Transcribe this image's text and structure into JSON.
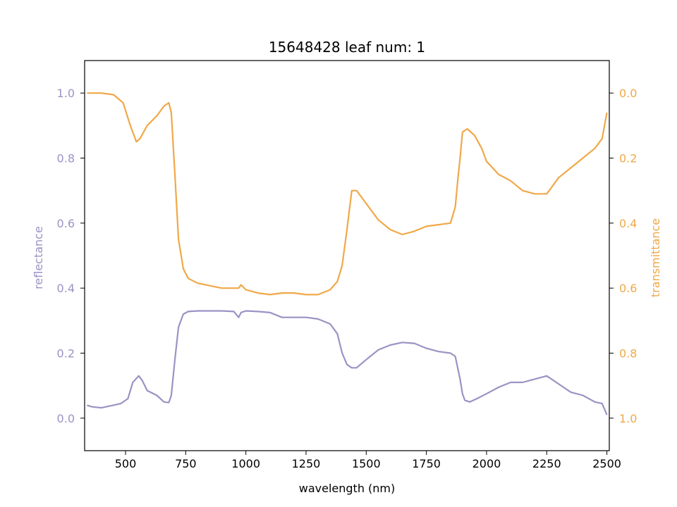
{
  "chart_data": {
    "type": "line",
    "title": "15648428 leaf num: 1",
    "xlabel": "wavelength (nm)",
    "ylabel_left": "reflectance",
    "ylabel_right": "transmittance",
    "xlim": [
      330,
      2510
    ],
    "ylim_left": [
      -0.1,
      1.1
    ],
    "ylim_right": [
      1.1,
      -0.1
    ],
    "right_axis_inverted": true,
    "x_ticks": [
      500,
      750,
      1000,
      1250,
      1500,
      1750,
      2000,
      2250,
      2500
    ],
    "y_ticks_left": [
      0.0,
      0.2,
      0.4,
      0.6,
      0.8,
      1.0
    ],
    "y_ticks_right": [
      0.0,
      0.2,
      0.4,
      0.6,
      0.8,
      1.0
    ],
    "grid": false,
    "colors": {
      "reflectance": "#9a93c4",
      "transmittance": "#f0a848",
      "axis": "#000000"
    },
    "series": [
      {
        "name": "reflectance",
        "axis": "left",
        "color": "#9a93c4",
        "x": [
          340,
          360,
          400,
          450,
          480,
          510,
          530,
          555,
          570,
          590,
          630,
          660,
          680,
          690,
          705,
          720,
          740,
          760,
          800,
          900,
          950,
          970,
          980,
          1000,
          1050,
          1100,
          1150,
          1200,
          1250,
          1300,
          1350,
          1380,
          1400,
          1420,
          1440,
          1460,
          1500,
          1550,
          1600,
          1650,
          1700,
          1750,
          1800,
          1850,
          1870,
          1890,
          1900,
          1910,
          1930,
          1960,
          2000,
          2050,
          2100,
          2150,
          2200,
          2250,
          2300,
          2350,
          2400,
          2450,
          2480,
          2500
        ],
        "y": [
          0.04,
          0.035,
          0.032,
          0.04,
          0.045,
          0.06,
          0.11,
          0.13,
          0.115,
          0.085,
          0.07,
          0.05,
          0.048,
          0.07,
          0.18,
          0.28,
          0.32,
          0.328,
          0.33,
          0.33,
          0.328,
          0.31,
          0.325,
          0.33,
          0.328,
          0.325,
          0.31,
          0.31,
          0.31,
          0.305,
          0.29,
          0.26,
          0.2,
          0.165,
          0.155,
          0.155,
          0.18,
          0.21,
          0.225,
          0.233,
          0.23,
          0.215,
          0.205,
          0.2,
          0.19,
          0.12,
          0.075,
          0.055,
          0.05,
          0.06,
          0.075,
          0.095,
          0.11,
          0.11,
          0.12,
          0.13,
          0.105,
          0.08,
          0.07,
          0.05,
          0.045,
          0.01
        ]
      },
      {
        "name": "transmittance",
        "axis": "right",
        "color": "#f0a848",
        "x": [
          340,
          360,
          400,
          450,
          490,
          520,
          545,
          560,
          590,
          630,
          660,
          680,
          690,
          705,
          720,
          740,
          760,
          800,
          900,
          950,
          970,
          980,
          1000,
          1050,
          1100,
          1150,
          1200,
          1250,
          1300,
          1350,
          1380,
          1400,
          1420,
          1440,
          1460,
          1500,
          1550,
          1600,
          1650,
          1700,
          1750,
          1800,
          1850,
          1870,
          1880,
          1890,
          1900,
          1920,
          1950,
          1980,
          2000,
          2050,
          2100,
          2150,
          2200,
          2250,
          2300,
          2350,
          2400,
          2450,
          2480,
          2500
        ],
        "y": [
          0.0,
          0.0,
          0.0,
          0.005,
          0.03,
          0.1,
          0.15,
          0.14,
          0.1,
          0.07,
          0.04,
          0.03,
          0.06,
          0.25,
          0.45,
          0.54,
          0.57,
          0.585,
          0.6,
          0.6,
          0.6,
          0.59,
          0.605,
          0.615,
          0.62,
          0.615,
          0.615,
          0.62,
          0.62,
          0.605,
          0.58,
          0.53,
          0.42,
          0.3,
          0.3,
          0.34,
          0.39,
          0.42,
          0.435,
          0.425,
          0.41,
          0.405,
          0.4,
          0.35,
          0.27,
          0.2,
          0.12,
          0.11,
          0.13,
          0.17,
          0.21,
          0.25,
          0.27,
          0.3,
          0.31,
          0.31,
          0.26,
          0.23,
          0.2,
          0.17,
          0.14,
          0.06
        ]
      }
    ]
  }
}
